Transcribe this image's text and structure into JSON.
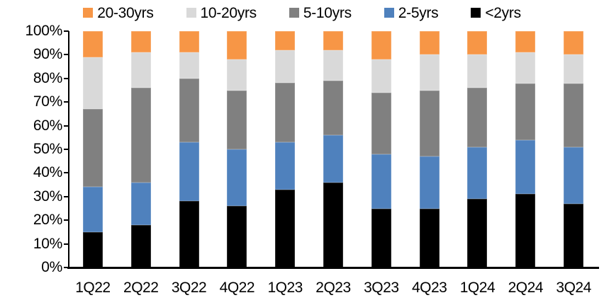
{
  "chart_data": {
    "type": "bar",
    "stacked": true,
    "percent_stacked": true,
    "title": "",
    "xlabel": "",
    "ylabel": "",
    "categories": [
      "1Q22",
      "2Q22",
      "3Q22",
      "4Q22",
      "1Q23",
      "2Q23",
      "3Q23",
      "4Q23",
      "1Q24",
      "2Q24",
      "3Q24"
    ],
    "series": [
      {
        "name": "<2yrs",
        "color": "#000000",
        "values": [
          15,
          18,
          28,
          26,
          33,
          36,
          25,
          25,
          29,
          31,
          27
        ]
      },
      {
        "name": "2-5yrs",
        "color": "#4F81BD",
        "values": [
          19,
          18,
          25,
          24,
          20,
          20,
          23,
          22,
          22,
          23,
          24
        ]
      },
      {
        "name": "5-10yrs",
        "color": "#808080",
        "values": [
          33,
          40,
          27,
          25,
          25,
          23,
          26,
          28,
          25,
          24,
          27
        ]
      },
      {
        "name": "10-20yrs",
        "color": "#D9D9D9",
        "values": [
          22,
          15,
          11,
          13,
          14,
          13,
          14,
          15,
          14,
          13,
          12
        ]
      },
      {
        "name": "20-30yrs",
        "color": "#F79646",
        "values": [
          11,
          9,
          9,
          12,
          8,
          8,
          12,
          10,
          10,
          9,
          10
        ]
      }
    ],
    "legend": {
      "position": "top",
      "order": [
        "20-30yrs",
        "10-20yrs",
        "5-10yrs",
        "2-5yrs",
        "<2yrs"
      ]
    },
    "ylim": [
      0,
      100
    ],
    "ytick_step": 10,
    "ytick_labels": [
      "0%",
      "10%",
      "20%",
      "30%",
      "40%",
      "50%",
      "60%",
      "70%",
      "80%",
      "90%",
      "100%"
    ],
    "grid": false,
    "unit": "%"
  }
}
